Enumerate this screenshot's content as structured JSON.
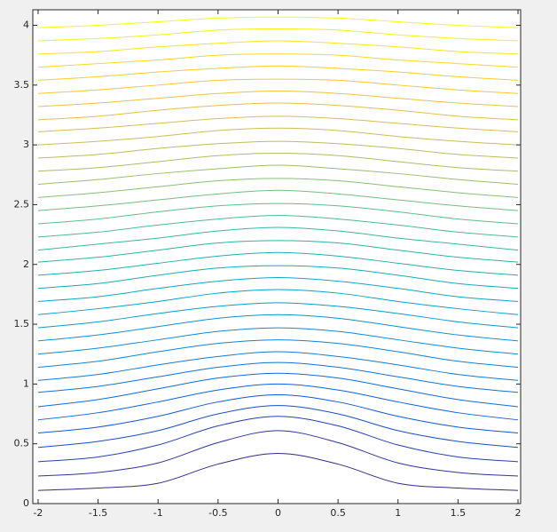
{
  "chart_data": {
    "type": "contour",
    "x": [
      -2,
      -1.5,
      -1,
      -0.5,
      0,
      0.5,
      1,
      1.5,
      2
    ],
    "xlim": [
      -2.044,
      2.022
    ],
    "ylim": [
      0,
      4.13
    ],
    "xticks": [
      -2,
      -1.5,
      -1,
      -0.5,
      0,
      0.5,
      1,
      1.5,
      2
    ],
    "yticks": [
      0,
      0.5,
      1,
      1.5,
      2,
      2.5,
      3,
      3.5,
      4
    ],
    "grid": false,
    "colormap": [
      "#352a87",
      "#0f5cdd",
      "#1481d6",
      "#06a4ca",
      "#2eb7a4",
      "#87bf77",
      "#d1bb59",
      "#fec832",
      "#f9fb0e"
    ],
    "series": [
      {
        "values": [
          0.11,
          0.13,
          0.17,
          0.33,
          0.42,
          0.33,
          0.17,
          0.13,
          0.11
        ]
      },
      {
        "values": [
          0.23,
          0.26,
          0.34,
          0.51,
          0.61,
          0.51,
          0.34,
          0.26,
          0.23
        ]
      },
      {
        "values": [
          0.35,
          0.39,
          0.49,
          0.65,
          0.73,
          0.65,
          0.49,
          0.39,
          0.35
        ]
      },
      {
        "values": [
          0.47,
          0.52,
          0.61,
          0.75,
          0.82,
          0.75,
          0.61,
          0.52,
          0.47
        ]
      },
      {
        "values": [
          0.59,
          0.64,
          0.73,
          0.85,
          0.91,
          0.85,
          0.73,
          0.64,
          0.59
        ]
      },
      {
        "values": [
          0.7,
          0.76,
          0.85,
          0.95,
          1.0,
          0.95,
          0.85,
          0.76,
          0.7
        ]
      },
      {
        "values": [
          0.81,
          0.87,
          0.96,
          1.05,
          1.09,
          1.05,
          0.96,
          0.87,
          0.81
        ]
      },
      {
        "values": [
          0.93,
          0.98,
          1.06,
          1.14,
          1.18,
          1.14,
          1.06,
          0.98,
          0.93
        ]
      },
      {
        "values": [
          1.03,
          1.08,
          1.16,
          1.23,
          1.27,
          1.23,
          1.16,
          1.08,
          1.03
        ]
      },
      {
        "values": [
          1.14,
          1.19,
          1.27,
          1.34,
          1.37,
          1.34,
          1.27,
          1.19,
          1.14
        ]
      },
      {
        "values": [
          1.25,
          1.3,
          1.37,
          1.44,
          1.47,
          1.44,
          1.37,
          1.3,
          1.25
        ]
      },
      {
        "values": [
          1.36,
          1.41,
          1.48,
          1.55,
          1.58,
          1.55,
          1.48,
          1.41,
          1.36
        ]
      },
      {
        "values": [
          1.47,
          1.52,
          1.59,
          1.65,
          1.68,
          1.65,
          1.59,
          1.52,
          1.47
        ]
      },
      {
        "values": [
          1.58,
          1.63,
          1.69,
          1.76,
          1.79,
          1.76,
          1.69,
          1.63,
          1.58
        ]
      },
      {
        "values": [
          1.69,
          1.73,
          1.8,
          1.86,
          1.89,
          1.86,
          1.8,
          1.73,
          1.69
        ]
      },
      {
        "values": [
          1.8,
          1.84,
          1.91,
          1.97,
          1.99,
          1.97,
          1.91,
          1.84,
          1.8
        ]
      },
      {
        "values": [
          1.91,
          1.95,
          2.01,
          2.07,
          2.1,
          2.07,
          2.01,
          1.95,
          1.91
        ]
      },
      {
        "values": [
          2.02,
          2.06,
          2.12,
          2.18,
          2.2,
          2.18,
          2.12,
          2.06,
          2.02
        ]
      },
      {
        "values": [
          2.12,
          2.17,
          2.22,
          2.28,
          2.31,
          2.28,
          2.22,
          2.17,
          2.12
        ]
      },
      {
        "values": [
          2.23,
          2.27,
          2.33,
          2.38,
          2.41,
          2.38,
          2.33,
          2.27,
          2.23
        ]
      },
      {
        "values": [
          2.34,
          2.38,
          2.44,
          2.49,
          2.51,
          2.49,
          2.44,
          2.38,
          2.34
        ]
      },
      {
        "values": [
          2.45,
          2.49,
          2.54,
          2.59,
          2.62,
          2.59,
          2.54,
          2.49,
          2.45
        ]
      },
      {
        "values": [
          2.56,
          2.6,
          2.65,
          2.7,
          2.72,
          2.7,
          2.65,
          2.6,
          2.56
        ]
      },
      {
        "values": [
          2.67,
          2.71,
          2.76,
          2.8,
          2.83,
          2.8,
          2.76,
          2.71,
          2.67
        ]
      },
      {
        "values": [
          2.78,
          2.81,
          2.86,
          2.91,
          2.93,
          2.91,
          2.86,
          2.81,
          2.78
        ]
      },
      {
        "values": [
          2.89,
          2.92,
          2.97,
          3.01,
          3.03,
          3.01,
          2.97,
          2.92,
          2.89
        ]
      },
      {
        "values": [
          3.0,
          3.03,
          3.07,
          3.12,
          3.14,
          3.12,
          3.07,
          3.03,
          3.0
        ]
      },
      {
        "values": [
          3.11,
          3.14,
          3.18,
          3.22,
          3.24,
          3.22,
          3.18,
          3.14,
          3.11
        ]
      },
      {
        "values": [
          3.21,
          3.24,
          3.29,
          3.33,
          3.35,
          3.33,
          3.29,
          3.24,
          3.21
        ]
      },
      {
        "values": [
          3.32,
          3.35,
          3.39,
          3.43,
          3.45,
          3.43,
          3.39,
          3.35,
          3.32
        ]
      },
      {
        "values": [
          3.43,
          3.46,
          3.5,
          3.54,
          3.55,
          3.54,
          3.5,
          3.46,
          3.43
        ]
      },
      {
        "values": [
          3.54,
          3.57,
          3.61,
          3.64,
          3.66,
          3.64,
          3.61,
          3.57,
          3.54
        ]
      },
      {
        "values": [
          3.65,
          3.68,
          3.71,
          3.75,
          3.76,
          3.75,
          3.71,
          3.68,
          3.65
        ]
      },
      {
        "values": [
          3.76,
          3.78,
          3.82,
          3.85,
          3.87,
          3.85,
          3.82,
          3.78,
          3.76
        ]
      },
      {
        "values": [
          3.87,
          3.89,
          3.92,
          3.96,
          3.97,
          3.96,
          3.92,
          3.89,
          3.87
        ]
      },
      {
        "values": [
          3.98,
          4.0,
          4.03,
          4.06,
          4.07,
          4.06,
          4.03,
          4.0,
          3.98
        ]
      }
    ]
  }
}
